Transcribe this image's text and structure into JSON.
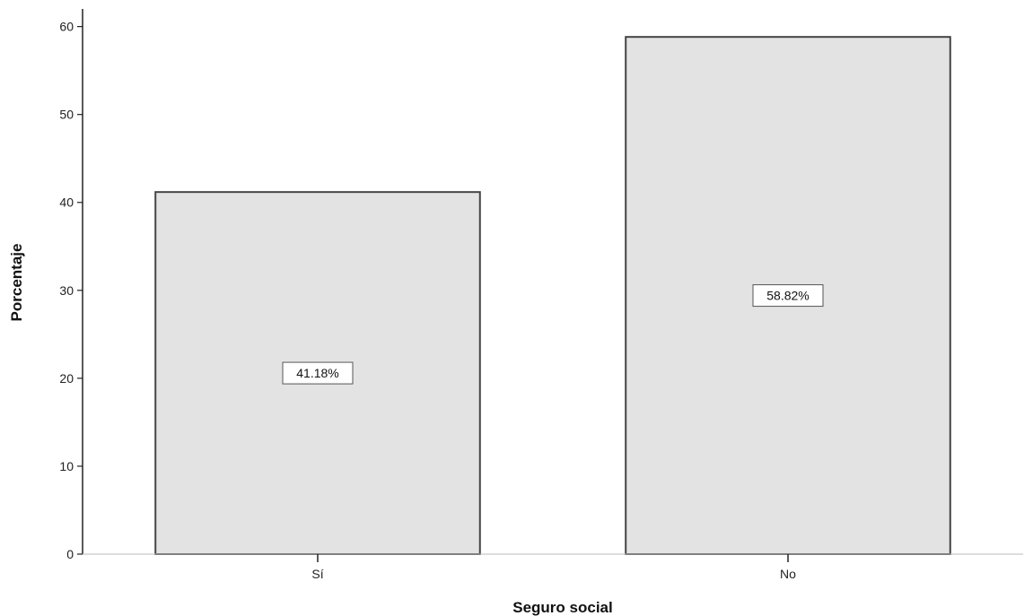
{
  "chart_data": {
    "type": "bar",
    "title": "",
    "xlabel": "Seguro social",
    "ylabel": "Porcentaje",
    "categories": [
      "Sí",
      "No"
    ],
    "values": [
      41.18,
      58.82
    ],
    "data_labels": [
      "41.18%",
      "58.82%"
    ],
    "ylim": [
      0,
      62
    ],
    "yticks": [
      0,
      10,
      20,
      30,
      40,
      50,
      60
    ],
    "grid": false,
    "legend": "none",
    "colors": {
      "bar_fill": "#e3e3e3",
      "bar_stroke": "#444444",
      "axis": "#222222"
    }
  }
}
